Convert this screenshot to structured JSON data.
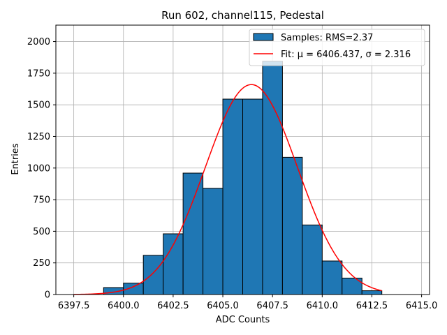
{
  "chart_data": {
    "type": "bar",
    "title": "Run 602, channel115, Pedestal",
    "xlabel": "ADC Counts",
    "ylabel": "Entries",
    "xlim": [
      6396.6,
      6415.4
    ],
    "ylim": [
      0,
      2130
    ],
    "xticks": [
      6397.5,
      6400.0,
      6402.5,
      6405.0,
      6407.5,
      6410.0,
      6412.5,
      6415.0
    ],
    "xtick_labels": [
      "6397.5",
      "6400.0",
      "6402.5",
      "6405.0",
      "6407.5",
      "6410.0",
      "6412.5",
      "6415.0"
    ],
    "yticks": [
      0,
      250,
      500,
      750,
      1000,
      1250,
      1500,
      1750,
      2000
    ],
    "ytick_labels": [
      "0",
      "250",
      "500",
      "750",
      "1000",
      "1250",
      "1500",
      "1750",
      "2000"
    ],
    "grid": true,
    "legend_position": "top-right",
    "bins": [
      {
        "x0": 6399,
        "x1": 6400,
        "value": 55
      },
      {
        "x0": 6400,
        "x1": 6401,
        "value": 90
      },
      {
        "x0": 6401,
        "x1": 6402,
        "value": 310
      },
      {
        "x0": 6402,
        "x1": 6403,
        "value": 480
      },
      {
        "x0": 6403,
        "x1": 6404,
        "value": 960
      },
      {
        "x0": 6404,
        "x1": 6405,
        "value": 840
      },
      {
        "x0": 6405,
        "x1": 6406,
        "value": 1545
      },
      {
        "x0": 6406,
        "x1": 6407,
        "value": 1545
      },
      {
        "x0": 6407,
        "x1": 6408,
        "value": 1845
      },
      {
        "x0": 6408,
        "x1": 6409,
        "value": 1085
      },
      {
        "x0": 6409,
        "x1": 6410,
        "value": 550
      },
      {
        "x0": 6410,
        "x1": 6411,
        "value": 265
      },
      {
        "x0": 6411,
        "x1": 6412,
        "value": 130
      },
      {
        "x0": 6412,
        "x1": 6413,
        "value": 30
      }
    ],
    "fit": {
      "mu": 6406.437,
      "sigma": 2.316,
      "amplitude": 1660,
      "x_range": [
        6397.5,
        6413
      ]
    },
    "series": [
      {
        "name": "Samples: RMS=2.37",
        "type": "histogram",
        "color": "#1f77b4",
        "edge_color": "#000000"
      },
      {
        "name": "Fit: μ = 6406.437, σ = 2.316",
        "type": "line",
        "color": "#ff0000"
      }
    ]
  }
}
